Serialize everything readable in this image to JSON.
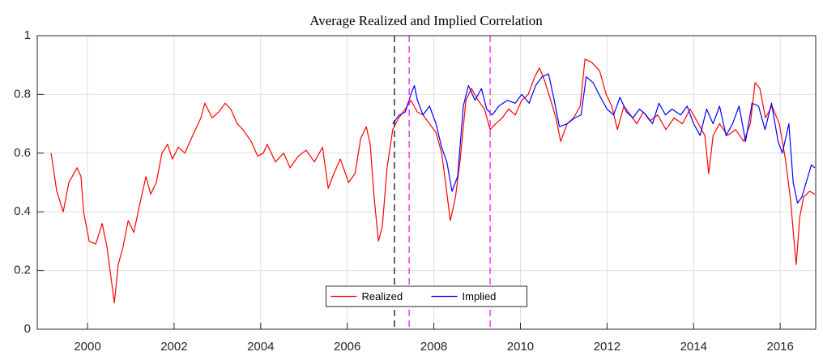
{
  "chart_data": {
    "type": "line",
    "title": "Average Realized and Implied Correlation",
    "xlim": [
      1998.84,
      2016.82
    ],
    "xticks": [
      2000,
      2002,
      2004,
      2006,
      2008,
      2010,
      2012,
      2014,
      2016
    ],
    "ylim": [
      0,
      1
    ],
    "yticks": [
      0,
      0.2,
      0.4,
      0.6,
      0.8,
      1
    ],
    "grid": true,
    "legend": "south",
    "vlines": [
      {
        "x": 2007.09,
        "color": "#000000"
      },
      {
        "x": 2007.43,
        "color": "#ff00ff"
      },
      {
        "x": 2009.3,
        "color": "#ff00ff"
      }
    ],
    "series": [
      {
        "name": "Realized",
        "color": "#ff0000",
        "x": [
          1999.16,
          1999.29,
          1999.44,
          1999.57,
          1999.76,
          1999.85,
          1999.91,
          2000.04,
          2000.19,
          2000.34,
          2000.45,
          2000.54,
          2000.62,
          2000.71,
          2000.82,
          2000.94,
          2001.07,
          2001.2,
          2001.35,
          2001.46,
          2001.59,
          2001.72,
          2001.85,
          2001.96,
          2002.1,
          2002.25,
          2002.43,
          2002.62,
          2002.71,
          2002.88,
          2003.03,
          2003.18,
          2003.31,
          2003.46,
          2003.59,
          2003.78,
          2003.93,
          2004.06,
          2004.15,
          2004.34,
          2004.53,
          2004.68,
          2004.87,
          2005.05,
          2005.24,
          2005.43,
          2005.56,
          2005.69,
          2005.84,
          2006.03,
          2006.18,
          2006.31,
          2006.44,
          2006.53,
          2006.62,
          2006.72,
          2006.81,
          2006.92,
          2007.05,
          2007.19,
          2007.34,
          2007.47,
          2007.62,
          2007.75,
          2007.9,
          2008.05,
          2008.18,
          2008.27,
          2008.38,
          2008.5,
          2008.61,
          2008.74,
          2008.87,
          2009.02,
          2009.17,
          2009.3,
          2009.43,
          2009.58,
          2009.73,
          2009.88,
          2010.03,
          2010.18,
          2010.33,
          2010.44,
          2010.55,
          2010.7,
          2010.82,
          2010.93,
          2011.08,
          2011.23,
          2011.38,
          2011.49,
          2011.64,
          2011.83,
          2011.98,
          2012.11,
          2012.24,
          2012.39,
          2012.54,
          2012.69,
          2012.84,
          2012.99,
          2013.17,
          2013.36,
          2013.55,
          2013.74,
          2013.92,
          2014.11,
          2014.26,
          2014.35,
          2014.45,
          2014.6,
          2014.78,
          2014.97,
          2015.16,
          2015.31,
          2015.42,
          2015.53,
          2015.66,
          2015.81,
          2015.98,
          2016.12,
          2016.24,
          2016.32,
          2016.37,
          2016.45,
          2016.54,
          2016.68,
          2016.8
        ],
        "values": [
          0.6,
          0.47,
          0.4,
          0.5,
          0.55,
          0.52,
          0.4,
          0.3,
          0.29,
          0.36,
          0.28,
          0.18,
          0.09,
          0.22,
          0.28,
          0.37,
          0.33,
          0.42,
          0.52,
          0.46,
          0.5,
          0.6,
          0.63,
          0.58,
          0.62,
          0.6,
          0.66,
          0.72,
          0.77,
          0.72,
          0.74,
          0.77,
          0.75,
          0.7,
          0.68,
          0.64,
          0.59,
          0.6,
          0.63,
          0.57,
          0.6,
          0.55,
          0.59,
          0.61,
          0.57,
          0.62,
          0.48,
          0.53,
          0.58,
          0.5,
          0.53,
          0.65,
          0.69,
          0.63,
          0.45,
          0.3,
          0.35,
          0.55,
          0.68,
          0.72,
          0.75,
          0.78,
          0.74,
          0.73,
          0.7,
          0.67,
          0.6,
          0.5,
          0.37,
          0.45,
          0.58,
          0.78,
          0.82,
          0.78,
          0.75,
          0.68,
          0.7,
          0.72,
          0.75,
          0.73,
          0.78,
          0.8,
          0.86,
          0.89,
          0.85,
          0.78,
          0.72,
          0.64,
          0.7,
          0.72,
          0.76,
          0.92,
          0.91,
          0.88,
          0.8,
          0.76,
          0.68,
          0.76,
          0.73,
          0.7,
          0.74,
          0.71,
          0.73,
          0.68,
          0.72,
          0.7,
          0.75,
          0.7,
          0.66,
          0.53,
          0.66,
          0.7,
          0.66,
          0.68,
          0.64,
          0.7,
          0.84,
          0.82,
          0.72,
          0.76,
          0.7,
          0.58,
          0.44,
          0.3,
          0.22,
          0.38,
          0.45,
          0.47,
          0.46
        ]
      },
      {
        "name": "Implied",
        "color": "#0000ff",
        "x": [
          2007.05,
          2007.2,
          2007.34,
          2007.47,
          2007.55,
          2007.62,
          2007.75,
          2007.9,
          2008.05,
          2008.18,
          2008.3,
          2008.42,
          2008.55,
          2008.68,
          2008.8,
          2008.95,
          2009.1,
          2009.22,
          2009.35,
          2009.5,
          2009.7,
          2009.88,
          2010.03,
          2010.2,
          2010.35,
          2010.5,
          2010.65,
          2010.78,
          2010.9,
          2011.08,
          2011.25,
          2011.4,
          2011.52,
          2011.68,
          2011.85,
          2012.0,
          2012.15,
          2012.3,
          2012.45,
          2012.6,
          2012.75,
          2012.9,
          2013.05,
          2013.2,
          2013.35,
          2013.5,
          2013.7,
          2013.85,
          2014.0,
          2014.15,
          2014.3,
          2014.45,
          2014.6,
          2014.75,
          2014.9,
          2015.05,
          2015.2,
          2015.35,
          2015.5,
          2015.65,
          2015.8,
          2015.95,
          2016.05,
          2016.2,
          2016.3,
          2016.4,
          2016.5,
          2016.6,
          2016.72,
          2016.8
        ],
        "values": [
          0.7,
          0.73,
          0.74,
          0.8,
          0.83,
          0.78,
          0.73,
          0.76,
          0.7,
          0.62,
          0.57,
          0.47,
          0.52,
          0.76,
          0.83,
          0.78,
          0.82,
          0.75,
          0.73,
          0.76,
          0.78,
          0.77,
          0.8,
          0.77,
          0.83,
          0.86,
          0.87,
          0.78,
          0.69,
          0.7,
          0.72,
          0.73,
          0.86,
          0.84,
          0.79,
          0.75,
          0.73,
          0.79,
          0.74,
          0.72,
          0.75,
          0.73,
          0.7,
          0.77,
          0.73,
          0.75,
          0.73,
          0.76,
          0.7,
          0.66,
          0.75,
          0.7,
          0.76,
          0.66,
          0.7,
          0.76,
          0.64,
          0.77,
          0.76,
          0.68,
          0.77,
          0.64,
          0.6,
          0.7,
          0.5,
          0.43,
          0.45,
          0.5,
          0.56,
          0.55
        ]
      }
    ]
  }
}
